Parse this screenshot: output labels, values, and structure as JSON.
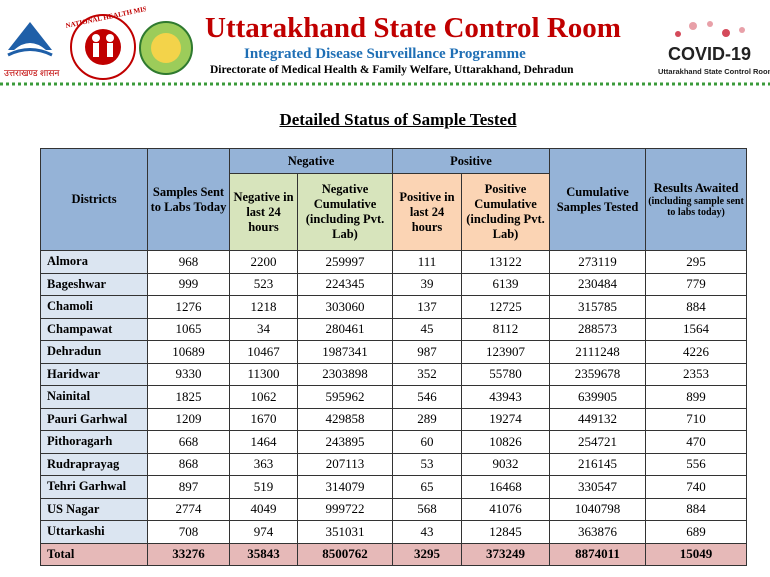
{
  "header": {
    "title": "Uttarakhand State Control Room",
    "subtitle": "Integrated Disease Surveillance Programme",
    "directorate": "Directorate of Medical Health & Family Welfare, Uttarakhand, Dehradun",
    "left_logo_text": "उत्तराखण्ड शासन",
    "nhm_text": "NATIONAL HEALTH MISSION",
    "covid_logo": "COVID-19",
    "covid_caption": "Uttarakhand State Control Room"
  },
  "heading": "Detailed Status of Sample Tested",
  "table": {
    "group_headers": [
      "Negative",
      "Positive"
    ],
    "columns": [
      "Districts",
      "Samples Sent to Labs Today",
      "Negative in last 24 hours",
      "Negative Cumulative (including Pvt. Lab)",
      "Positive in last 24 hours",
      "Positive Cumulative (including Pvt. Lab)",
      "Cumulative Samples Tested",
      "Results Awaited"
    ],
    "results_note": "(including sample sent to labs today)",
    "rows": [
      [
        "Almora",
        968,
        2200,
        259997,
        111,
        13122,
        273119,
        295
      ],
      [
        "Bageshwar",
        999,
        523,
        224345,
        39,
        6139,
        230484,
        779
      ],
      [
        "Chamoli",
        1276,
        1218,
        303060,
        137,
        12725,
        315785,
        884
      ],
      [
        "Champawat",
        1065,
        34,
        280461,
        45,
        8112,
        288573,
        1564
      ],
      [
        "Dehradun",
        10689,
        10467,
        1987341,
        987,
        123907,
        2111248,
        4226
      ],
      [
        "Haridwar",
        9330,
        11300,
        2303898,
        352,
        55780,
        2359678,
        2353
      ],
      [
        "Nainital",
        1825,
        1062,
        595962,
        546,
        43943,
        639905,
        899
      ],
      [
        "Pauri Garhwal",
        1209,
        1670,
        429858,
        289,
        19274,
        449132,
        710
      ],
      [
        "Pithoragarh",
        668,
        1464,
        243895,
        60,
        10826,
        254721,
        470
      ],
      [
        "Rudraprayag",
        868,
        363,
        207113,
        53,
        9032,
        216145,
        556
      ],
      [
        "Tehri Garhwal",
        897,
        519,
        314079,
        65,
        16468,
        330547,
        740
      ],
      [
        "US Nagar",
        2774,
        4049,
        999722,
        568,
        41076,
        1040798,
        884
      ],
      [
        "Uttarkashi",
        708,
        974,
        351031,
        43,
        12845,
        363876,
        689
      ]
    ],
    "total": [
      "Total",
      33276,
      35843,
      8500762,
      3295,
      373249,
      8874011,
      15049
    ]
  }
}
